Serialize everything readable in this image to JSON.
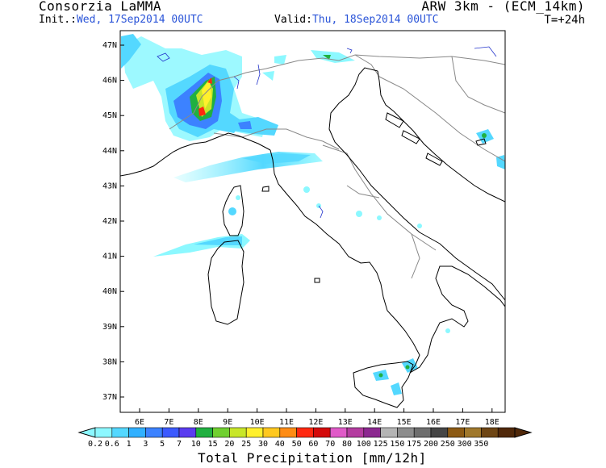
{
  "header": {
    "organization": "Consorzia LaMMA",
    "model": "ARW 3km - (ECM_14km)",
    "init_label": "Init.:",
    "init_value": "Wed, 17Sep2014 00UTC",
    "valid_label": "Valid:",
    "valid_value": "Thu, 18Sep2014 00UTC",
    "forecast_step": "T=+24h"
  },
  "map": {
    "lat_labels": [
      "47N",
      "46N",
      "45N",
      "44N",
      "43N",
      "42N",
      "41N",
      "40N",
      "39N",
      "38N",
      "37N"
    ],
    "lon_labels": [
      "6E",
      "7E",
      "8E",
      "9E",
      "10E",
      "11E",
      "12E",
      "13E",
      "14E",
      "15E",
      "16E",
      "17E",
      "18E"
    ],
    "colors": {
      "coastline": "#000000",
      "borders": "#888888",
      "rivers": "#2233cc"
    }
  },
  "colorbar": {
    "title": "Total Precipitation [mm/12h]",
    "levels": [
      "0.2",
      "0.6",
      "1",
      "3",
      "5",
      "7",
      "10",
      "15",
      "20",
      "25",
      "30",
      "40",
      "50",
      "60",
      "70",
      "80",
      "100",
      "125",
      "150",
      "175",
      "200",
      "250",
      "300",
      "350"
    ],
    "colors": [
      "#8cf8ff",
      "#54d8ff",
      "#30b0ff",
      "#3c82ff",
      "#3c5aff",
      "#5a3cf0",
      "#20b040",
      "#70d030",
      "#c8e628",
      "#fff02c",
      "#ffc81e",
      "#ff8c14",
      "#ff2810",
      "#d40a0a",
      "#e05ac8",
      "#b43ca0",
      "#8c2890",
      "#b4b4b4",
      "#8c8c8c",
      "#6e6e6e",
      "#464646",
      "#8c5a14",
      "#a0782c",
      "#6e4614",
      "#50280a"
    ]
  }
}
